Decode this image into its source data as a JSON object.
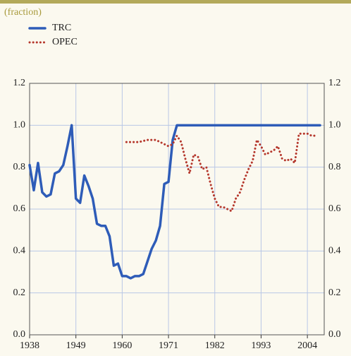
{
  "chart_data": {
    "type": "line",
    "subtitle": "(fraction)",
    "xlim": [
      1938,
      2008
    ],
    "xticks": [
      1938,
      1949,
      1960,
      1971,
      1982,
      1993,
      2004
    ],
    "ylim": [
      0,
      1.2
    ],
    "yticks": [
      {
        "value": 0,
        "label": "0.0"
      },
      0.2,
      0.4,
      0.6,
      0.8,
      {
        "value": 1,
        "label": "1.0"
      },
      1.2
    ],
    "grid": true,
    "series": [
      {
        "name": "TRC",
        "color": "#2e5cb8",
        "style": "solid",
        "x": [
          1938,
          1939,
          1940,
          1941,
          1942,
          1943,
          1944,
          1945,
          1946,
          1947,
          1948,
          1949,
          1950,
          1951,
          1952,
          1953,
          1954,
          1955,
          1956,
          1957,
          1958,
          1959,
          1960,
          1961,
          1962,
          1963,
          1964,
          1965,
          1966,
          1967,
          1968,
          1969,
          1970,
          1971,
          1972,
          1973,
          1974,
          1975,
          1976,
          1977,
          1978,
          1979,
          1980,
          1981,
          1982,
          1983,
          1984,
          1985,
          1986,
          1987,
          1988,
          1989,
          1990,
          1991,
          1992,
          1993,
          1994,
          1995,
          1996,
          1997,
          1998,
          1999,
          2000,
          2001,
          2002,
          2003,
          2004,
          2005,
          2006,
          2007
        ],
        "values": [
          0.81,
          0.69,
          0.82,
          0.68,
          0.66,
          0.67,
          0.77,
          0.78,
          0.81,
          0.9,
          1.0,
          0.65,
          0.63,
          0.76,
          0.71,
          0.65,
          0.53,
          0.52,
          0.52,
          0.47,
          0.33,
          0.34,
          0.28,
          0.28,
          0.27,
          0.28,
          0.28,
          0.29,
          0.35,
          0.41,
          0.45,
          0.52,
          0.72,
          0.73,
          0.93,
          1.0,
          1.0,
          1.0,
          1.0,
          1.0,
          1.0,
          1.0,
          1.0,
          1.0,
          1.0,
          1.0,
          1.0,
          1.0,
          1.0,
          1.0,
          1.0,
          1.0,
          1.0,
          1.0,
          1.0,
          1.0,
          1.0,
          1.0,
          1.0,
          1.0,
          1.0,
          1.0,
          1.0,
          1.0,
          1.0,
          1.0,
          1.0,
          1.0,
          1.0,
          1.0
        ]
      },
      {
        "name": "OPEC",
        "color": "#b5372c",
        "style": "dotted",
        "x": [
          1961,
          1962,
          1963,
          1964,
          1965,
          1966,
          1967,
          1968,
          1969,
          1970,
          1971,
          1972,
          1973,
          1974,
          1975,
          1976,
          1977,
          1978,
          1979,
          1980,
          1981,
          1982,
          1983,
          1984,
          1985,
          1986,
          1987,
          1988,
          1989,
          1990,
          1991,
          1992,
          1993,
          1994,
          1995,
          1996,
          1997,
          1998,
          1999,
          2000,
          2001,
          2002,
          2003,
          2004,
          2005,
          2006
        ],
        "values": [
          0.92,
          0.92,
          0.92,
          0.92,
          0.925,
          0.93,
          0.93,
          0.93,
          0.92,
          0.91,
          0.9,
          0.91,
          0.95,
          0.92,
          0.84,
          0.77,
          0.86,
          0.85,
          0.79,
          0.8,
          0.72,
          0.65,
          0.61,
          0.61,
          0.6,
          0.59,
          0.65,
          0.68,
          0.74,
          0.79,
          0.83,
          0.93,
          0.9,
          0.86,
          0.87,
          0.88,
          0.9,
          0.84,
          0.83,
          0.84,
          0.82,
          0.96,
          0.96,
          0.96,
          0.95,
          0.95
        ]
      }
    ]
  }
}
